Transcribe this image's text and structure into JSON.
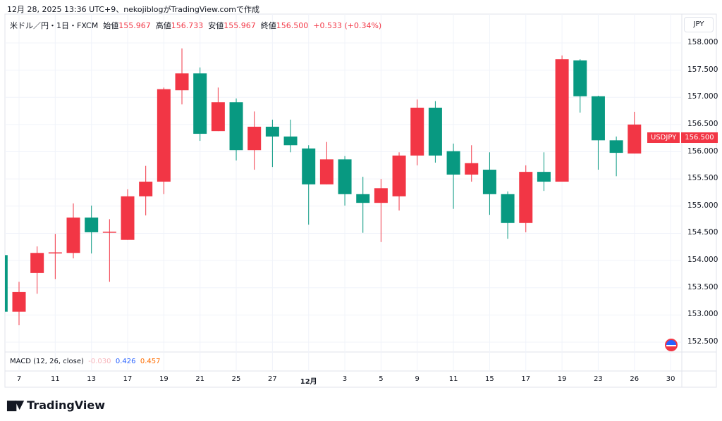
{
  "caption": "12月 28, 2025 13:36 UTC+9、nekojiblogがTradingView.comで作成",
  "legend": {
    "symbol": "米ドル／円・1日・FXCM",
    "open_label": "始値",
    "open": "155.967",
    "high_label": "高値",
    "high": "156.733",
    "low_label": "安値",
    "low": "155.967",
    "close_label": "終値",
    "close": "156.500",
    "change": "+0.533 (+0.34%)"
  },
  "currency": "JPY",
  "last_price_label": {
    "symbol": "USDJPY",
    "price": "156.500"
  },
  "macd": {
    "label": "MACD (12, 26, close)",
    "hist": "-0.030",
    "macd": "0.426",
    "signal": "0.457"
  },
  "brand": "TradingView",
  "colors": {
    "up": "#f23645",
    "down": "#089981",
    "grid": "#f0f3fa"
  },
  "chart_data": {
    "type": "candlestick",
    "title": "USD/JPY Daily (FXCM)",
    "y_ticks": [
      "158.000",
      "157.500",
      "157.000",
      "156.500",
      "156.000",
      "155.500",
      "155.000",
      "154.500",
      "154.000",
      "153.500",
      "153.000",
      "152.500"
    ],
    "ylim": [
      152.4,
      158.05
    ],
    "x_ticks": [
      {
        "label": "7",
        "index": 1
      },
      {
        "label": "11",
        "index": 3
      },
      {
        "label": "13",
        "index": 5
      },
      {
        "label": "17",
        "index": 7
      },
      {
        "label": "19",
        "index": 9
      },
      {
        "label": "21",
        "index": 11
      },
      {
        "label": "25",
        "index": 13
      },
      {
        "label": "27",
        "index": 15
      },
      {
        "label": "12月",
        "index": 17
      },
      {
        "label": "3",
        "index": 19
      },
      {
        "label": "5",
        "index": 21
      },
      {
        "label": "9",
        "index": 23
      },
      {
        "label": "11",
        "index": 25
      },
      {
        "label": "15",
        "index": 27
      },
      {
        "label": "17",
        "index": 29
      },
      {
        "label": "19",
        "index": 31
      },
      {
        "label": "23",
        "index": 33
      },
      {
        "label": "26",
        "index": 35
      },
      {
        "label": "30",
        "index": 37
      }
    ],
    "ohlc": [
      [
        154.1,
        154.1,
        153.06,
        153.06
      ],
      [
        153.06,
        153.61,
        152.81,
        153.42
      ],
      [
        153.77,
        154.26,
        153.39,
        154.14
      ],
      [
        154.15,
        154.49,
        153.66,
        154.15
      ],
      [
        154.14,
        155.05,
        154.04,
        154.79
      ],
      [
        154.79,
        155.01,
        154.13,
        154.52
      ],
      [
        154.53,
        154.76,
        153.61,
        154.53
      ],
      [
        154.38,
        155.31,
        154.38,
        155.18
      ],
      [
        155.18,
        155.74,
        154.83,
        155.45
      ],
      [
        155.45,
        157.18,
        155.22,
        157.15
      ],
      [
        157.13,
        157.9,
        156.87,
        157.44
      ],
      [
        157.44,
        157.55,
        156.2,
        156.33
      ],
      [
        156.38,
        157.18,
        156.38,
        156.91
      ],
      [
        156.91,
        156.98,
        155.84,
        156.03
      ],
      [
        156.03,
        156.74,
        155.67,
        156.46
      ],
      [
        156.46,
        156.59,
        155.72,
        156.28
      ],
      [
        156.28,
        156.59,
        155.99,
        156.12
      ],
      [
        156.06,
        156.12,
        154.66,
        155.4
      ],
      [
        155.4,
        156.18,
        155.4,
        155.86
      ],
      [
        155.86,
        155.92,
        155.01,
        155.22
      ],
      [
        155.22,
        155.54,
        154.51,
        155.06
      ],
      [
        155.06,
        155.5,
        154.34,
        155.33
      ],
      [
        155.18,
        155.99,
        154.92,
        155.93
      ],
      [
        155.93,
        156.96,
        155.75,
        156.81
      ],
      [
        156.81,
        156.93,
        155.8,
        155.93
      ],
      [
        156.01,
        156.15,
        154.95,
        155.58
      ],
      [
        155.58,
        156.12,
        155.45,
        155.79
      ],
      [
        155.67,
        155.99,
        154.84,
        155.22
      ],
      [
        155.22,
        155.27,
        154.4,
        154.69
      ],
      [
        154.69,
        155.75,
        154.52,
        155.63
      ],
      [
        155.63,
        155.99,
        155.28,
        155.45
      ],
      [
        155.45,
        157.77,
        155.45,
        157.7
      ],
      [
        157.68,
        157.7,
        156.72,
        157.02
      ],
      [
        157.02,
        157.03,
        155.67,
        156.21
      ],
      [
        156.21,
        156.28,
        155.55,
        155.98
      ],
      [
        155.967,
        156.733,
        155.967,
        156.5
      ]
    ]
  }
}
